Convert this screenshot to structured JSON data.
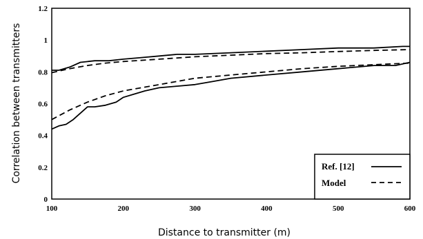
{
  "chart_data": {
    "type": "line",
    "title": "",
    "xlabel": "Distance to transmitter (m)",
    "ylabel": "Correlation between transmitters",
    "xlim": [
      100,
      600
    ],
    "ylim": [
      0,
      1.2
    ],
    "x_ticks": [
      "100",
      "200",
      "300",
      "400",
      "500",
      "600"
    ],
    "y_ticks": [
      "0",
      "0.2",
      "0.4",
      "0.6",
      "0.8",
      "1",
      "1.2"
    ],
    "grid": false,
    "legend_position": "bottom-right",
    "series": [
      {
        "name": "Ref. [12]",
        "style": "solid",
        "color": "#000000",
        "x": [
          100,
          110,
          125,
          140,
          160,
          180,
          200,
          225,
          250,
          275,
          300,
          350,
          400,
          450,
          500,
          550,
          590,
          600
        ],
        "y": [
          0.81,
          0.81,
          0.83,
          0.86,
          0.87,
          0.87,
          0.88,
          0.89,
          0.9,
          0.91,
          0.91,
          0.92,
          0.93,
          0.94,
          0.95,
          0.95,
          0.96,
          0.96
        ]
      },
      {
        "name": "Model",
        "style": "dashed",
        "color": "#000000",
        "x": [
          100,
          125,
          150,
          175,
          200,
          250,
          300,
          350,
          400,
          450,
          500,
          550,
          600
        ],
        "y": [
          0.795,
          0.82,
          0.84,
          0.855,
          0.865,
          0.88,
          0.895,
          0.905,
          0.915,
          0.92,
          0.928,
          0.935,
          0.94
        ]
      },
      {
        "name": "Ref. [12]",
        "style": "solid",
        "color": "#000000",
        "x": [
          100,
          110,
          120,
          130,
          140,
          150,
          160,
          175,
          190,
          200,
          215,
          230,
          250,
          275,
          300,
          325,
          350,
          400,
          450,
          500,
          550,
          580,
          600
        ],
        "y": [
          0.44,
          0.46,
          0.47,
          0.5,
          0.54,
          0.58,
          0.58,
          0.59,
          0.61,
          0.64,
          0.66,
          0.68,
          0.7,
          0.71,
          0.72,
          0.74,
          0.76,
          0.78,
          0.8,
          0.82,
          0.84,
          0.84,
          0.86
        ]
      },
      {
        "name": "Model",
        "style": "dashed",
        "color": "#000000",
        "x": [
          100,
          125,
          150,
          175,
          200,
          250,
          300,
          350,
          400,
          450,
          500,
          550,
          600
        ],
        "y": [
          0.5,
          0.56,
          0.61,
          0.65,
          0.68,
          0.72,
          0.76,
          0.78,
          0.8,
          0.82,
          0.835,
          0.845,
          0.855
        ]
      }
    ],
    "legend": [
      {
        "label": "Ref. [12]",
        "style": "solid"
      },
      {
        "label": "Model",
        "style": "dashed"
      }
    ]
  }
}
